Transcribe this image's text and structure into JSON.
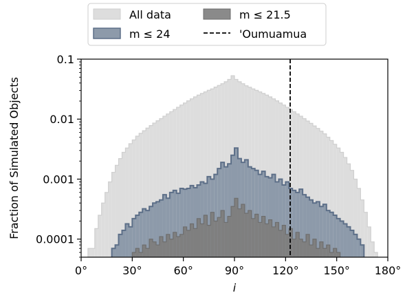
{
  "chart_data": {
    "type": "histogram",
    "title": "",
    "xlabel": "i",
    "ylabel": "Fraction of Simulated Objects",
    "xlim": [
      0,
      180
    ],
    "ylim": [
      5e-05,
      0.1
    ],
    "yscale": "log",
    "bin_width": 2,
    "x_ticks": [
      {
        "value": 0,
        "label": "0°"
      },
      {
        "value": 30,
        "label": "30°"
      },
      {
        "value": 60,
        "label": "60°"
      },
      {
        "value": 90,
        "label": "90°"
      },
      {
        "value": 120,
        "label": "120°"
      },
      {
        "value": 150,
        "label": "150°"
      },
      {
        "value": 180,
        "label": "180°"
      }
    ],
    "y_ticks": [
      {
        "value": 0.1,
        "label": "0.1"
      },
      {
        "value": 0.01,
        "label": "0.01"
      },
      {
        "value": 0.001,
        "label": "0.001"
      },
      {
        "value": 0.0001,
        "label": "0.0001"
      }
    ],
    "legend_position": "top-center",
    "legend_columns": 2,
    "series": [
      {
        "name": "All data",
        "fill": "#dddddd",
        "edge": "#cfcfcf",
        "bin_starts": [
          4,
          6,
          8,
          10,
          12,
          14,
          16,
          18,
          20,
          22,
          24,
          26,
          28,
          30,
          32,
          34,
          36,
          38,
          40,
          42,
          44,
          46,
          48,
          50,
          52,
          54,
          56,
          58,
          60,
          62,
          64,
          66,
          68,
          70,
          72,
          74,
          76,
          78,
          80,
          82,
          84,
          86,
          88,
          90,
          92,
          94,
          96,
          98,
          100,
          102,
          104,
          106,
          108,
          110,
          112,
          114,
          116,
          118,
          120,
          122,
          124,
          126,
          128,
          130,
          132,
          134,
          136,
          138,
          140,
          142,
          144,
          146,
          148,
          150,
          152,
          154,
          156,
          158,
          160,
          162,
          164,
          166,
          168,
          170,
          172
        ],
        "values": [
          7e-05,
          7e-05,
          0.00015,
          0.00025,
          0.0004,
          0.0006,
          0.0009,
          0.0013,
          0.0017,
          0.0022,
          0.0028,
          0.0033,
          0.0039,
          0.0045,
          0.0052,
          0.0058,
          0.0064,
          0.0071,
          0.0078,
          0.0086,
          0.0094,
          0.0102,
          0.0112,
          0.0122,
          0.0133,
          0.0145,
          0.0158,
          0.0172,
          0.0186,
          0.0202,
          0.0218,
          0.0235,
          0.0252,
          0.0268,
          0.0285,
          0.0303,
          0.032,
          0.0342,
          0.0365,
          0.039,
          0.042,
          0.046,
          0.053,
          0.046,
          0.042,
          0.039,
          0.036,
          0.034,
          0.032,
          0.0302,
          0.0285,
          0.0268,
          0.0252,
          0.0235,
          0.0218,
          0.0202,
          0.0186,
          0.0172,
          0.0158,
          0.0145,
          0.0133,
          0.0122,
          0.0112,
          0.0102,
          0.0093,
          0.0085,
          0.0077,
          0.007,
          0.0063,
          0.0057,
          0.005,
          0.0044,
          0.0038,
          0.0033,
          0.0028,
          0.0023,
          0.0018,
          0.0014,
          0.001,
          0.0007,
          0.00045,
          0.00028,
          0.00016,
          9e-05,
          6e-05
        ]
      },
      {
        "name": "m ≤ 24",
        "fill": "#8d9aaa",
        "edge": "#5d6f88",
        "bin_starts": [
          18,
          20,
          22,
          24,
          26,
          28,
          30,
          32,
          34,
          36,
          38,
          40,
          42,
          44,
          46,
          48,
          50,
          52,
          54,
          56,
          58,
          60,
          62,
          64,
          66,
          68,
          70,
          72,
          74,
          76,
          78,
          80,
          82,
          84,
          86,
          88,
          90,
          92,
          94,
          96,
          98,
          100,
          102,
          104,
          106,
          108,
          110,
          112,
          114,
          116,
          118,
          120,
          122,
          124,
          126,
          128,
          130,
          132,
          134,
          136,
          138,
          140,
          142,
          144,
          146,
          148,
          150,
          152,
          154,
          156,
          158,
          160,
          162,
          164
        ],
        "values": [
          7e-05,
          8e-05,
          0.00012,
          0.00014,
          0.00018,
          0.00016,
          0.00022,
          0.00025,
          0.00028,
          0.00032,
          0.0003,
          0.00035,
          0.0004,
          0.00042,
          0.00045,
          0.00055,
          0.00048,
          0.0006,
          0.00065,
          0.00058,
          0.0007,
          0.00068,
          0.0007,
          0.00078,
          0.00072,
          0.0008,
          0.0009,
          0.00085,
          0.0011,
          0.001,
          0.0012,
          0.0015,
          0.0019,
          0.0016,
          0.0018,
          0.0025,
          0.0033,
          0.0022,
          0.0019,
          0.0021,
          0.0016,
          0.0015,
          0.0014,
          0.0012,
          0.00135,
          0.0011,
          0.00105,
          0.0012,
          0.0009,
          0.001,
          0.0008,
          0.0009,
          0.0007,
          0.00065,
          0.0006,
          0.00068,
          0.00055,
          0.0005,
          0.00045,
          0.0004,
          0.00042,
          0.00035,
          0.00038,
          0.0003,
          0.00028,
          0.00025,
          0.00022,
          0.0002,
          0.00018,
          0.00016,
          0.00014,
          0.00012,
          0.0001,
          8e-05
        ]
      },
      {
        "name": "m ≤ 21.5",
        "fill": "#7f7f7f",
        "edge": "#6e6e6e",
        "bin_starts": [
          30,
          32,
          34,
          36,
          38,
          40,
          42,
          44,
          46,
          48,
          50,
          52,
          54,
          56,
          58,
          60,
          62,
          64,
          66,
          68,
          70,
          72,
          74,
          76,
          78,
          80,
          82,
          84,
          86,
          88,
          90,
          92,
          94,
          96,
          98,
          100,
          102,
          104,
          106,
          108,
          110,
          112,
          114,
          116,
          118,
          120,
          122,
          124,
          126,
          128,
          130,
          132,
          134,
          136,
          138,
          140,
          142,
          144,
          146,
          148,
          150
        ],
        "values": [
          6e-05,
          7e-05,
          6e-05,
          8e-05,
          7e-05,
          0.0001,
          9e-05,
          8e-05,
          0.00011,
          9e-05,
          0.00012,
          0.0001,
          0.00013,
          0.00011,
          0.00012,
          0.00016,
          0.00014,
          0.00018,
          0.00015,
          0.00022,
          0.00018,
          0.00025,
          0.00017,
          0.00028,
          0.0002,
          0.00023,
          0.0003,
          0.00019,
          0.00024,
          0.00035,
          0.00048,
          0.00032,
          0.00038,
          0.00027,
          0.0003,
          0.00022,
          0.00026,
          0.00019,
          0.00024,
          0.00018,
          0.00021,
          0.00016,
          0.00019,
          0.00014,
          0.00017,
          0.00012,
          0.00015,
          0.0001,
          0.00013,
          0.0001,
          9e-05,
          0.00012,
          8e-05,
          0.0001,
          7e-05,
          9e-05,
          7e-05,
          8e-05,
          6e-05,
          7e-05,
          6e-05
        ]
      }
    ],
    "reference_line": {
      "name": "'Oumuamua",
      "x": 122.7,
      "style": "dashed",
      "color": "#000000"
    }
  }
}
